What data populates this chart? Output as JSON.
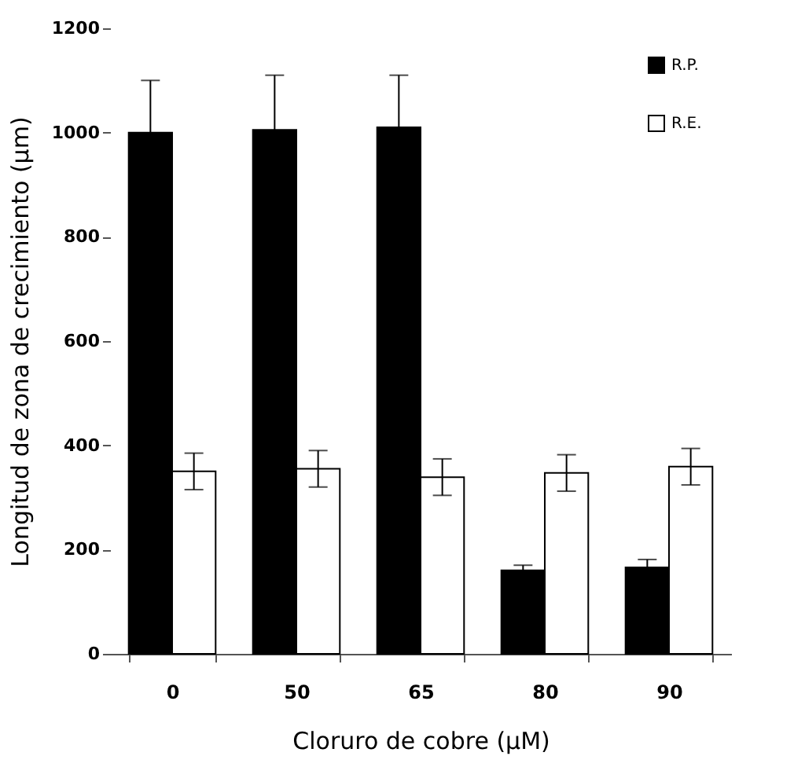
{
  "chart_data": {
    "type": "bar",
    "xlabel": "Cloruro de cobre (µM)",
    "ylabel": "Longitud de zona de crecimiento (µm)",
    "categories": [
      "0",
      "50",
      "65",
      "80",
      "90"
    ],
    "series": [
      {
        "name": "R.P.",
        "color": "#000000",
        "values": [
          1000,
          1005,
          1010,
          160,
          166
        ],
        "errors": [
          100,
          105,
          100,
          10,
          15
        ]
      },
      {
        "name": "R.E.",
        "color": "#ffffff",
        "values": [
          350,
          355,
          339,
          347,
          359
        ],
        "errors": [
          35,
          35,
          35,
          35,
          35
        ]
      }
    ],
    "ylim": [
      0,
      1200
    ],
    "yticks": [
      0,
      200,
      400,
      600,
      800,
      1000,
      1200
    ],
    "legend": "top right"
  }
}
